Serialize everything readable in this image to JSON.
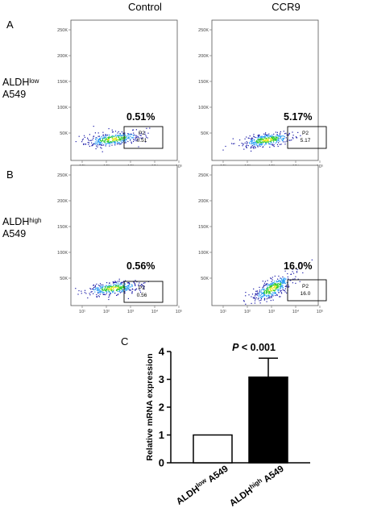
{
  "columns": {
    "control": "Control",
    "ccr9": "CCR9"
  },
  "panels": {
    "a": "A",
    "b": "B",
    "c": "C"
  },
  "rows": {
    "low": {
      "name": "ALDH",
      "sup": "low",
      "line2": "A549"
    },
    "high": {
      "name": "ALDH",
      "sup": "high",
      "line2": "A549"
    }
  },
  "flow_axes": {
    "y_ticks": [
      "250K",
      "200K",
      "150K",
      "100K",
      "50K"
    ],
    "x_ticks": [
      "10¹",
      "10²",
      "10³",
      "10⁴",
      "10⁵"
    ]
  },
  "gates": [
    {
      "panel": "low-control",
      "gate_name": "P2",
      "gate_value": "0.51",
      "percent_label": "0.51%"
    },
    {
      "panel": "low-ccr9",
      "gate_name": "P2",
      "gate_value": "5.17",
      "percent_label": "5.17%"
    },
    {
      "panel": "high-control",
      "gate_name": "P2",
      "gate_value": "0.56",
      "percent_label": "0.56%"
    },
    {
      "panel": "high-ccr9",
      "gate_name": "P2",
      "gate_value": "16.0",
      "percent_label": "16.0%"
    }
  ],
  "colors": {
    "bar_low_fill": "#ffffff",
    "bar_high_fill": "#000000",
    "dots_core": "#33cc33",
    "dots_mid": "#2a9df4",
    "dots_outer": "#1a1aa8",
    "dots_hot": "#e8e820"
  },
  "chart_data": {
    "type": "bar",
    "ylabel": "Relative mRNA expression",
    "ylim": [
      0,
      4
    ],
    "y_ticks": [
      "0",
      "1",
      "2",
      "3",
      "4"
    ],
    "categories": [
      {
        "name": "ALDH",
        "sup": "low",
        "suffix": " A549"
      },
      {
        "name": "ALDH",
        "sup": "high",
        "suffix": " A549"
      }
    ],
    "values": [
      1.0,
      3.08
    ],
    "errors": [
      0,
      0.68
    ],
    "annotation_p": "P",
    "annotation_rest": " < 0.001"
  }
}
